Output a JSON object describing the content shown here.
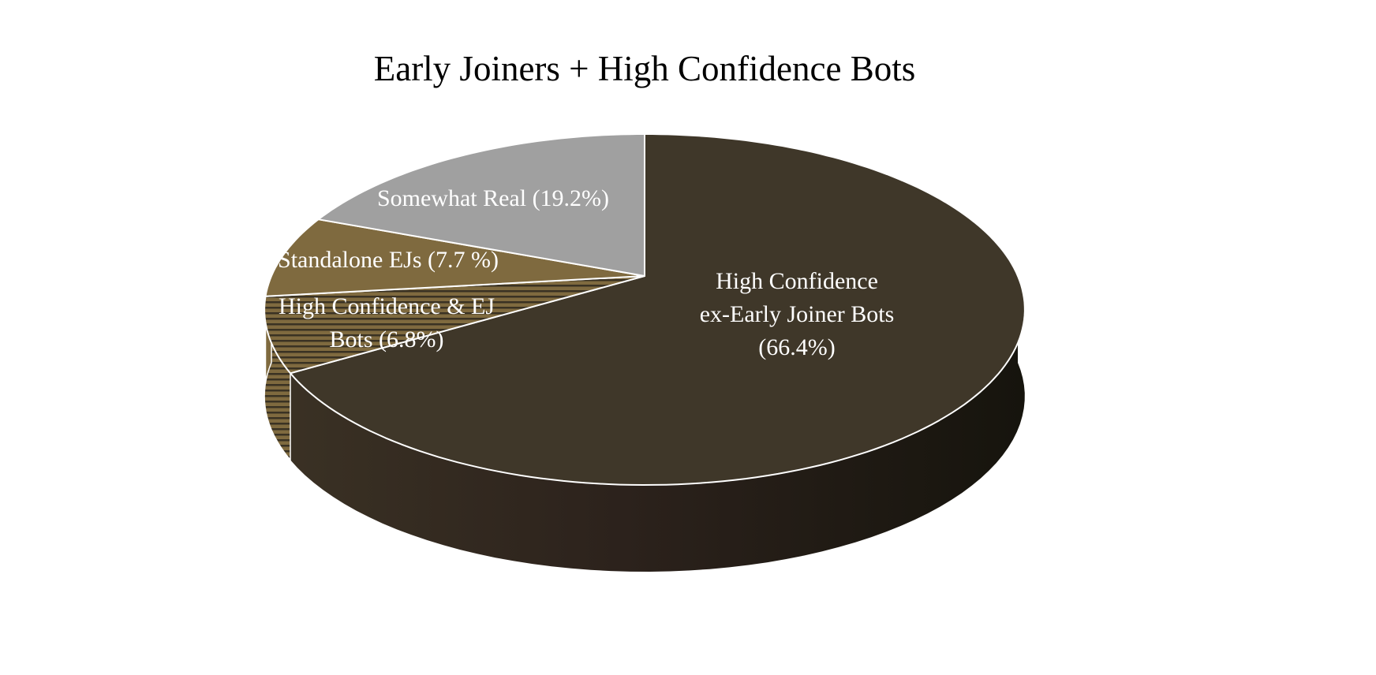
{
  "chart_data": {
    "type": "pie",
    "style": "3d",
    "title": "Early Joiners + High Confidence Bots",
    "start": "12 o'clock, clockwise",
    "slices": [
      {
        "label_lines": [
          "High Confidence",
          "ex-Early Joiner Bots",
          "(66.4%)"
        ],
        "value": 66.4,
        "color": "#3f3729",
        "side_colors": [
          "#30281f",
          "#16140d"
        ],
        "pattern": "solid"
      },
      {
        "label_lines": [
          "High Confidence & EJ",
          "Bots (6.8%)"
        ],
        "value": 6.8,
        "color": "#7f6a3f",
        "stripe_color": "#3a3223",
        "pattern": "horizontal-stripes"
      },
      {
        "label_lines": [
          "Standalone EJs (7.7 %)"
        ],
        "value": 7.7,
        "color": "#7f6a3f",
        "pattern": "solid"
      },
      {
        "label_lines": [
          "Somewhat Real (19.2%)"
        ],
        "value": 19.2,
        "color": "#a0a0a0",
        "pattern": "solid"
      }
    ],
    "outline_color": "#ffffff",
    "legend": "none"
  }
}
